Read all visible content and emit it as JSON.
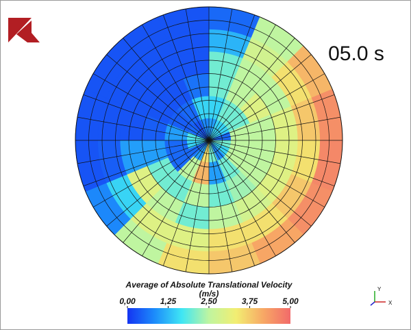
{
  "time_label": "05.0 s",
  "field": {
    "sectors": 16,
    "rings": 6,
    "values": [
      [
        1.0,
        1.5,
        2.0,
        2.0,
        1.2,
        0.5
      ],
      [
        1.5,
        2.0,
        2.5,
        2.5,
        2.8,
        2.5
      ],
      [
        1.5,
        2.0,
        3.0,
        2.5,
        3.5,
        4.0
      ],
      [
        0.5,
        2.5,
        2.5,
        3.0,
        3.8,
        4.5
      ],
      [
        2.0,
        2.5,
        2.5,
        3.0,
        3.5,
        4.6
      ],
      [
        1.5,
        2.5,
        2.5,
        3.0,
        3.8,
        4.5
      ],
      [
        0.8,
        2.0,
        2.3,
        2.8,
        3.5,
        4.2
      ],
      [
        2.0,
        1.0,
        2.0,
        2.5,
        3.5,
        3.8
      ],
      [
        3.5,
        4.0,
        2.5,
        2.0,
        3.0,
        3.5
      ],
      [
        1.0,
        2.5,
        2.0,
        2.5,
        3.0,
        2.5
      ],
      [
        0.5,
        0.5,
        2.0,
        3.0,
        1.5,
        0.8
      ],
      [
        1.5,
        0.5,
        1.0,
        1.0,
        0.4,
        0.3
      ],
      [
        1.8,
        1.0,
        0.4,
        0.3,
        0.3,
        0.3
      ],
      [
        0.5,
        0.4,
        0.3,
        0.3,
        0.3,
        0.3
      ],
      [
        0.3,
        0.5,
        0.3,
        0.3,
        0.3,
        0.3
      ],
      [
        0.8,
        1.5,
        0.6,
        0.3,
        0.3,
        0.3
      ]
    ]
  },
  "colorbar": {
    "title": "Average of Absolute Translational Velocity",
    "unit": "(m/s)",
    "range": [
      0,
      5
    ],
    "ticks": [
      {
        "value": 0,
        "label": "0,00"
      },
      {
        "value": 1.25,
        "label": "1,25"
      },
      {
        "value": 2.5,
        "label": "2,50"
      },
      {
        "value": 3.75,
        "label": "3,75"
      },
      {
        "value": 5,
        "label": "5,00"
      }
    ],
    "colormap": [
      "#1434f2",
      "#1c8cfb",
      "#3fe6f4",
      "#bff5a0",
      "#f2ee72",
      "#f7a865",
      "#f26a6a"
    ]
  },
  "axes_triad": {
    "y": "Y",
    "x": "X"
  }
}
